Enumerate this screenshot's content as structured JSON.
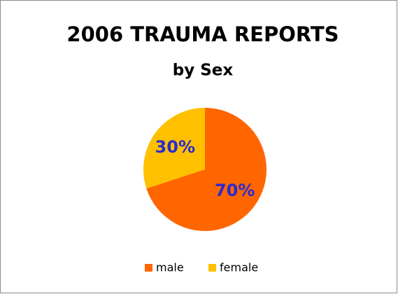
{
  "chart_data": {
    "type": "pie",
    "title": "2006 TRAUMA REPORTS",
    "subtitle": "by Sex",
    "categories": [
      "male",
      "female"
    ],
    "values": [
      70,
      30
    ],
    "value_labels": [
      "70%",
      "30%"
    ],
    "colors": [
      "#ff6600",
      "#ffc000"
    ],
    "label_color": "#2a2ad0",
    "legend": "bottom"
  }
}
